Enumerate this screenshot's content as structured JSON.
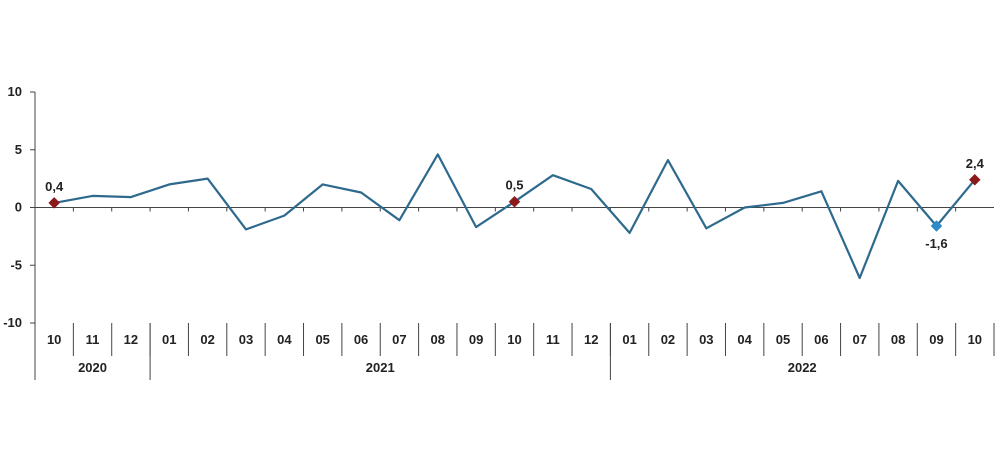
{
  "chart_data": {
    "type": "line",
    "categories": [
      "10",
      "11",
      "12",
      "01",
      "02",
      "03",
      "04",
      "05",
      "06",
      "07",
      "08",
      "09",
      "10",
      "11",
      "12",
      "01",
      "02",
      "03",
      "04",
      "05",
      "06",
      "07",
      "08",
      "09",
      "10"
    ],
    "years": [
      {
        "label": "2020",
        "start": 0,
        "end": 2
      },
      {
        "label": "2021",
        "start": 3,
        "end": 14
      },
      {
        "label": "2022",
        "start": 15,
        "end": 24
      }
    ],
    "series": [
      {
        "values": [
          0.4,
          1.0,
          0.9,
          2.0,
          2.5,
          -1.9,
          -0.7,
          2.0,
          1.3,
          -1.1,
          4.6,
          -1.7,
          0.5,
          2.8,
          1.6,
          -2.2,
          4.1,
          -1.8,
          0.0,
          0.4,
          1.4,
          -6.1,
          2.3,
          -1.6,
          2.4
        ],
        "color": "#2e6a8e"
      }
    ],
    "highlights": [
      {
        "index": 0,
        "label": "0,4",
        "color": "#8b1a1a",
        "position": "above"
      },
      {
        "index": 12,
        "label": "0,5",
        "color": "#8b1a1a",
        "position": "above"
      },
      {
        "index": 23,
        "label": "-1,6",
        "color": "#2e8bc8",
        "position": "below"
      },
      {
        "index": 24,
        "label": "2,4",
        "color": "#8b1a1a",
        "position": "above"
      }
    ],
    "ylim": [
      -10,
      10
    ],
    "yticks": [
      10,
      5,
      0,
      -5,
      -10
    ],
    "grid": false,
    "title": "",
    "xlabel": "",
    "ylabel": ""
  }
}
